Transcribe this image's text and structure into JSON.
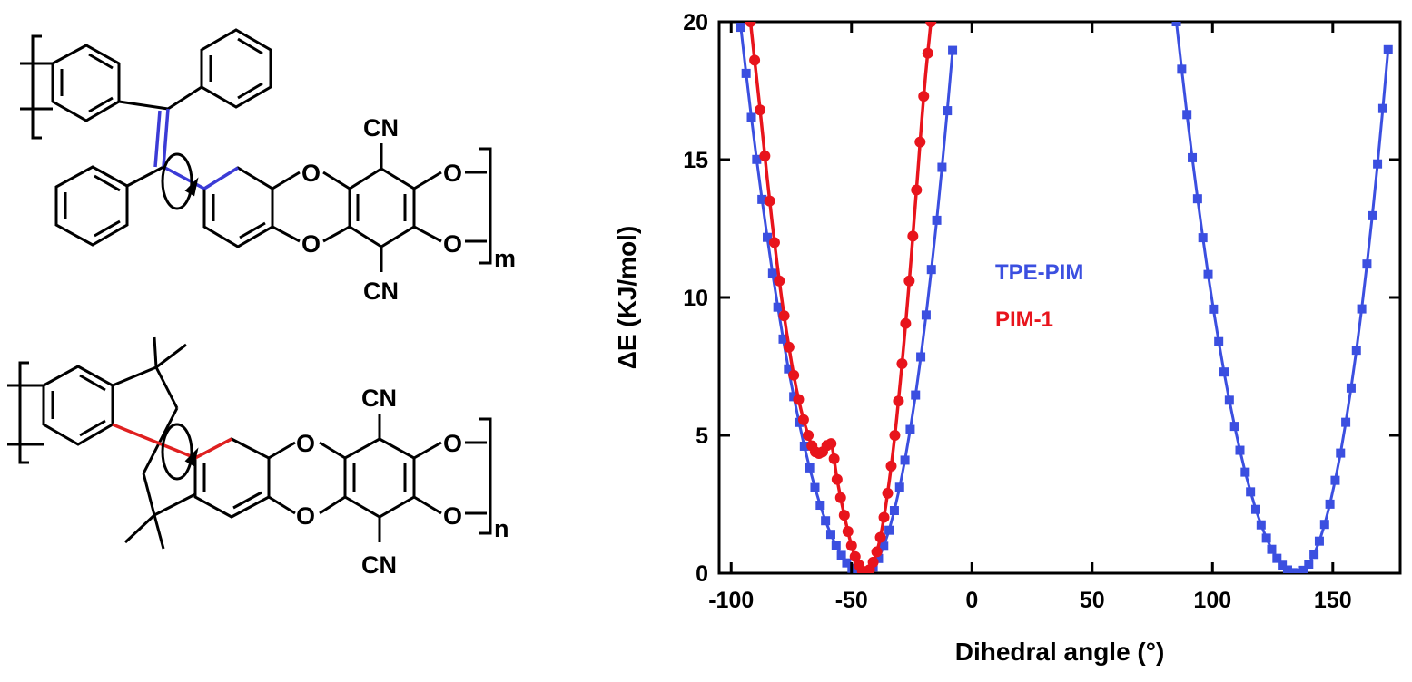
{
  "structures": {
    "top": {
      "labels": [
        "CN",
        "O",
        "O",
        "O",
        "O",
        "CN"
      ],
      "repeat_subscript": "m",
      "highlight_color": "#3b3bd6"
    },
    "bottom": {
      "labels": [
        "CN",
        "O",
        "O",
        "O",
        "O",
        "CN"
      ],
      "repeat_subscript": "n",
      "highlight_color": "#e02020"
    }
  },
  "chart_data": {
    "type": "line",
    "xlabel": "Dihedral angle (°)",
    "ylabel": "ΔE (KJ/mol)",
    "xlim": [
      -105,
      178
    ],
    "ylim": [
      0,
      20
    ],
    "xticks": [
      -100,
      -50,
      0,
      50,
      100,
      150
    ],
    "yticks": [
      0,
      5,
      10,
      15,
      20
    ],
    "grid": false,
    "legend_position": "center",
    "series": [
      {
        "name": "TPE-PIM",
        "color": "#3b4fe0",
        "marker": "square",
        "segments": [
          {
            "x_start": -96,
            "x_end": -7,
            "minimum_x": -45,
            "minimum_y": 0,
            "left_y_at_start": 19.8,
            "right_y_at_end": 20
          },
          {
            "x_start": 85,
            "x_end": 174,
            "minimum_x": 135,
            "minimum_y": 0,
            "left_y_at_start": 20,
            "right_y_at_end": 20
          }
        ]
      },
      {
        "name": "PIM-1",
        "color": "#e8141c",
        "marker": "circle",
        "points": [
          [
            -92,
            20
          ],
          [
            -88,
            16.8
          ],
          [
            -84,
            13.5
          ],
          [
            -80,
            10.6
          ],
          [
            -76,
            8.2
          ],
          [
            -72,
            6.3
          ],
          [
            -68,
            5.0
          ],
          [
            -65,
            4.4
          ],
          [
            -62,
            4.4
          ],
          [
            -58.5,
            4.7
          ],
          [
            -56,
            3.4
          ],
          [
            -53,
            2.1
          ],
          [
            -50,
            1.0
          ],
          [
            -47,
            0.3
          ],
          [
            -44,
            0
          ],
          [
            -41,
            0.4
          ],
          [
            -38,
            1.3
          ],
          [
            -35,
            2.9
          ],
          [
            -32,
            5.0
          ],
          [
            -29,
            7.6
          ],
          [
            -26,
            10.6
          ],
          [
            -23,
            13.9
          ],
          [
            -20,
            17.3
          ],
          [
            -17,
            20
          ]
        ]
      }
    ]
  }
}
